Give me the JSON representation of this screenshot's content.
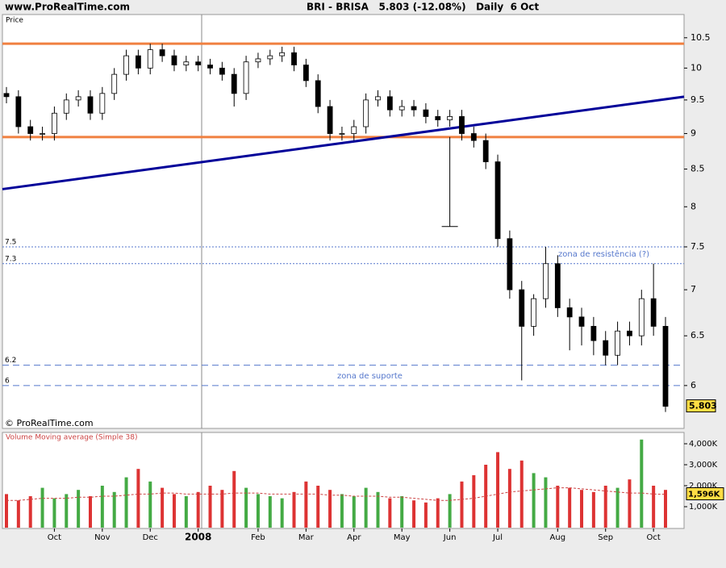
{
  "chart_data": {
    "type": "candlestick",
    "site": "www.ProRealTime.com",
    "title": "BRI - BRISA   5.803 (-12.08%)   Daily  6 Oct",
    "price_label": "Price",
    "copyright": "© ProRealTime.com",
    "volume_title": "Volume Moving average (Simple 38)",
    "categories": [
      null,
      null,
      null,
      null,
      "Oct",
      null,
      null,
      null,
      "Nov",
      null,
      null,
      null,
      "Dec",
      null,
      null,
      null,
      "2008",
      null,
      null,
      null,
      null,
      "Feb",
      null,
      null,
      null,
      "Mar",
      null,
      null,
      null,
      "Apr",
      null,
      null,
      null,
      "May",
      null,
      null,
      null,
      "Jun",
      null,
      null,
      null,
      "Jul",
      null,
      null,
      null,
      null,
      "Aug",
      null,
      null,
      null,
      "Sep",
      null,
      null,
      null,
      "Oct",
      null
    ],
    "open": [
      9.6,
      9.55,
      9.1,
      9.0,
      9.0,
      9.3,
      9.5,
      9.55,
      9.3,
      9.6,
      9.9,
      10.2,
      10.0,
      10.3,
      10.2,
      10.05,
      10.1,
      10.05,
      10.0,
      9.9,
      9.6,
      10.1,
      10.15,
      10.2,
      10.25,
      10.05,
      9.8,
      9.4,
      9.0,
      9.0,
      9.1,
      9.5,
      9.55,
      9.35,
      9.4,
      9.35,
      9.25,
      9.2,
      9.25,
      9.0,
      8.9,
      8.6,
      7.6,
      7.0,
      6.6,
      6.9,
      7.3,
      6.8,
      6.7,
      6.6,
      6.45,
      6.3,
      6.55,
      6.5,
      6.9,
      6.6
    ],
    "high": [
      9.7,
      9.65,
      9.2,
      9.1,
      9.4,
      9.6,
      9.65,
      9.65,
      9.7,
      10.0,
      10.3,
      10.3,
      10.4,
      10.4,
      10.3,
      10.2,
      10.2,
      10.15,
      10.1,
      10.0,
      10.2,
      10.25,
      10.3,
      10.35,
      10.35,
      10.15,
      9.9,
      9.5,
      9.1,
      9.2,
      9.6,
      9.65,
      9.65,
      9.5,
      9.5,
      9.45,
      9.35,
      9.35,
      9.35,
      9.1,
      9.0,
      8.7,
      7.7,
      7.1,
      6.95,
      7.5,
      7.4,
      6.9,
      6.8,
      6.7,
      6.55,
      6.65,
      6.65,
      7.0,
      7.3,
      6.7
    ],
    "low": [
      9.45,
      9.0,
      8.9,
      8.9,
      8.9,
      9.2,
      9.4,
      9.2,
      9.2,
      9.5,
      9.8,
      9.9,
      9.9,
      10.1,
      9.95,
      9.95,
      9.95,
      9.9,
      9.8,
      9.4,
      9.5,
      10.0,
      10.05,
      10.1,
      9.95,
      9.7,
      9.3,
      8.9,
      8.9,
      8.9,
      9.0,
      9.4,
      9.25,
      9.25,
      9.25,
      9.15,
      9.1,
      9.1,
      8.9,
      8.8,
      8.5,
      7.5,
      6.9,
      6.05,
      6.5,
      6.8,
      6.7,
      6.35,
      6.4,
      6.3,
      6.2,
      6.2,
      6.4,
      6.4,
      6.5,
      5.75
    ],
    "close": [
      9.55,
      9.1,
      9.0,
      9.0,
      9.3,
      9.5,
      9.55,
      9.3,
      9.6,
      9.9,
      10.2,
      10.0,
      10.3,
      10.2,
      10.05,
      10.1,
      10.05,
      10.0,
      9.9,
      9.6,
      10.1,
      10.15,
      10.2,
      10.25,
      10.05,
      9.8,
      9.4,
      9.0,
      9.0,
      9.1,
      9.5,
      9.55,
      9.35,
      9.4,
      9.35,
      9.25,
      9.2,
      9.25,
      9.0,
      8.9,
      8.6,
      7.6,
      7.0,
      6.6,
      6.9,
      7.3,
      6.8,
      6.7,
      6.6,
      6.45,
      6.3,
      6.55,
      6.5,
      6.9,
      6.6,
      5.803
    ],
    "ylim": [
      5.6,
      10.9
    ],
    "log_scale": true,
    "yticks": [
      6,
      6.5,
      7,
      7.5,
      8,
      8.5,
      9,
      9.5,
      10,
      10.5
    ],
    "resistance_lines": [
      10.4,
      8.95
    ],
    "resistance_color": "#f08040",
    "trendline": [
      8.23,
      9.55
    ],
    "trend_color": "#000099",
    "level_lines": [
      7.5,
      7.3,
      6.2,
      6
    ],
    "level_color": "#5577cc",
    "annotations": [
      {
        "text": "zona de resistência (?)",
        "at": 7.3
      },
      {
        "text": "zona de suporte",
        "at": 6
      }
    ],
    "drop_marker": [
      8.95,
      7.75
    ],
    "up_color": "#44aa44",
    "down_color": "#dd3333",
    "volume": [
      1600000,
      1300000,
      1500000,
      1900000,
      1400000,
      1600000,
      1800000,
      1500000,
      2000000,
      1700000,
      2400000,
      2800000,
      2200000,
      1900000,
      1600000,
      1500000,
      1700000,
      2000000,
      1800000,
      2700000,
      1900000,
      1600000,
      1500000,
      1400000,
      1700000,
      2200000,
      2000000,
      1800000,
      1600000,
      1500000,
      1900000,
      1700000,
      1400000,
      1500000,
      1300000,
      1200000,
      1400000,
      1600000,
      2200000,
      2500000,
      3000000,
      3600000,
      2800000,
      3200000,
      2600000,
      2400000,
      2000000,
      1900000,
      1800000,
      1700000,
      2000000,
      1900000,
      2300000,
      4200000,
      2000000,
      1800000
    ],
    "volume_ma": [
      1300000,
      1300000,
      1350000,
      1400000,
      1400000,
      1400000,
      1450000,
      1450000,
      1500000,
      1500000,
      1550000,
      1600000,
      1600000,
      1650000,
      1650000,
      1600000,
      1600000,
      1600000,
      1600000,
      1650000,
      1650000,
      1650000,
      1600000,
      1600000,
      1600000,
      1600000,
      1600000,
      1550000,
      1550000,
      1500000,
      1500000,
      1500000,
      1450000,
      1450000,
      1400000,
      1350000,
      1300000,
      1300000,
      1350000,
      1400000,
      1500000,
      1600000,
      1700000,
      1750000,
      1800000,
      1850000,
      1900000,
      1900000,
      1850000,
      1800000,
      1750000,
      1700000,
      1650000,
      1650000,
      1600000,
      1596000
    ],
    "volume_ma_label": "1,596K",
    "volume_ma_color": "#cc4444",
    "volume_ylim": [
      0,
      4500000
    ],
    "volume_ticks": [
      {
        "value": 1000000,
        "label": "1,000K"
      },
      {
        "value": 2000000,
        "label": "2,000K"
      },
      {
        "value": 3000000,
        "label": "3,000K"
      },
      {
        "value": 4000000,
        "label": "4,000K"
      }
    ]
  }
}
